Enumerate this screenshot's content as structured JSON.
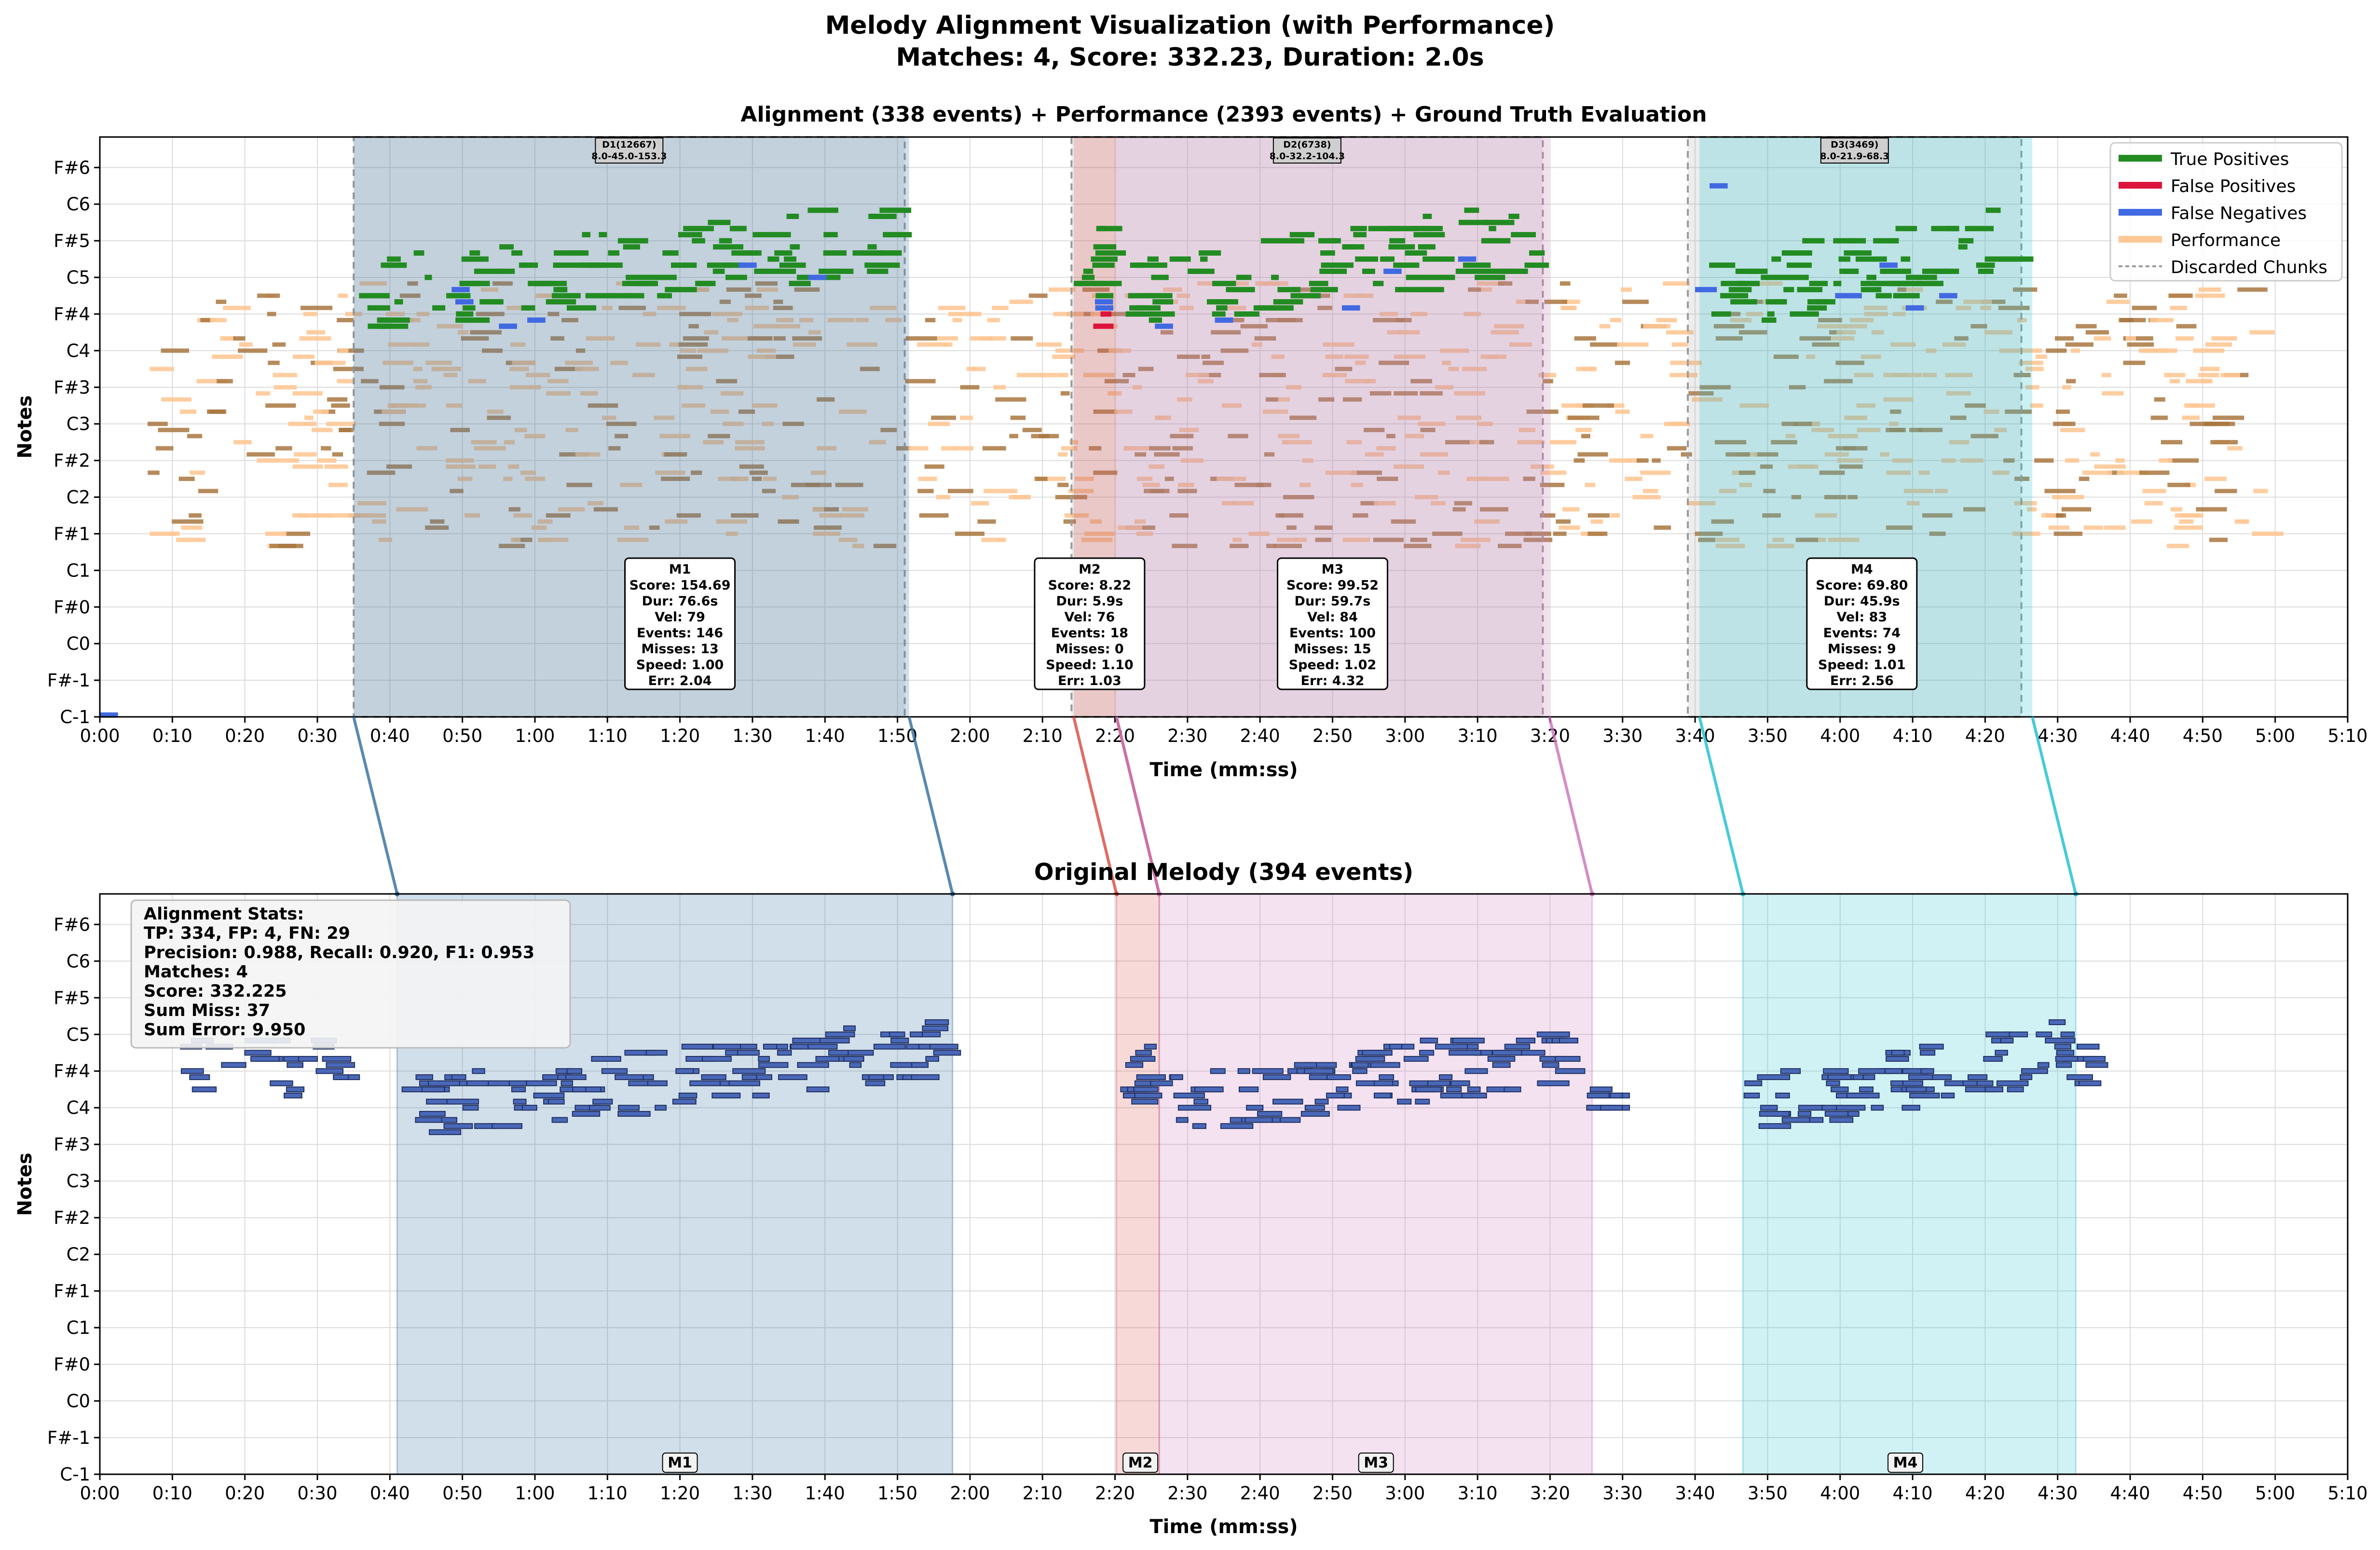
{
  "figure": {
    "title_line1": "Melody Alignment Visualization (with Performance)",
    "title_line2": "Matches: 4, Score: 332.23, Duration: 2.0s"
  },
  "colors": {
    "true_positive": "#228b22",
    "false_positive": "#dc143c",
    "false_negative": "#4169e1",
    "performance": "#ffc896",
    "performance_stroke": "#8b5a2b",
    "original": "#4a68b8",
    "original_stroke": "#1f2f60",
    "match_colors": [
      "#2f6c9e",
      "#d9463e",
      "#c970b8",
      "#17becf"
    ],
    "discard": "#9a9a9a",
    "grid": "#dcdcdc"
  },
  "chart_data": [
    {
      "type": "piano-roll",
      "title": "Alignment (338 events) + Performance (2393 events) + Ground Truth Evaluation",
      "xlabel": "Time (mm:ss)",
      "ylabel": "Notes",
      "xlim": [
        0,
        310
      ],
      "x_ticks": [
        0,
        10,
        20,
        30,
        40,
        50,
        60,
        70,
        80,
        90,
        100,
        110,
        120,
        130,
        140,
        150,
        160,
        170,
        180,
        190,
        200,
        210,
        220,
        230,
        240,
        250,
        260,
        270,
        280,
        290,
        300,
        310
      ],
      "x_tick_labels": [
        "0:00",
        "0:10",
        "0:20",
        "0:30",
        "0:40",
        "0:50",
        "1:00",
        "1:10",
        "1:20",
        "1:30",
        "1:40",
        "1:50",
        "2:00",
        "2:10",
        "2:20",
        "2:30",
        "2:40",
        "2:50",
        "3:00",
        "3:10",
        "3:20",
        "3:30",
        "3:40",
        "3:50",
        "4:00",
        "4:10",
        "4:20",
        "4:30",
        "4:40",
        "4:50",
        "5:00",
        "5:10"
      ],
      "y_ticks": [
        0,
        6,
        12,
        18,
        24,
        30,
        36,
        42,
        48,
        54,
        60,
        66,
        72,
        78,
        84,
        90
      ],
      "y_tick_labels": [
        "C-1",
        "F#-1",
        "C0",
        "F#0",
        "C1",
        "F#1",
        "C2",
        "F#2",
        "C3",
        "F#3",
        "C4",
        "F#4",
        "C5",
        "F#5",
        "C6",
        "F#6"
      ],
      "ylim": [
        0,
        95
      ],
      "grid": true,
      "legend_position": "top-right",
      "legend": [
        "True Positives",
        "False Positives",
        "False Negatives",
        "Performance",
        "Discarded Chunks"
      ],
      "discarded_chunks": [
        {
          "label": "D1(12667)",
          "range": "8.0-45.0-153.3",
          "start": 35,
          "end": 111
        },
        {
          "label": "D2(6738)",
          "range": "8.0-32.2-104.3",
          "start": 134,
          "end": 199
        },
        {
          "label": "D3(3469)",
          "range": "8.0-21.9-68.3",
          "start": 219,
          "end": 265
        }
      ],
      "matches": [
        {
          "id": "M1",
          "start": 35,
          "end": 111.6,
          "orig_start": 41,
          "orig_end": 117.6,
          "lines": [
            "M1",
            "Score: 154.69",
            "Dur: 76.6s",
            "Vel: 79",
            "Events: 146",
            "Misses: 13",
            "Speed: 1.00",
            "Err: 2.04"
          ]
        },
        {
          "id": "M2",
          "start": 134.3,
          "end": 140.2,
          "orig_start": 140.2,
          "orig_end": 146.1,
          "lines": [
            "M2",
            "Score: 8.22",
            "Dur: 5.9s",
            "Vel: 76",
            "Events: 18",
            "Misses: 0",
            "Speed: 1.10",
            "Err: 1.03"
          ]
        },
        {
          "id": "M3",
          "start": 140.2,
          "end": 199.9,
          "orig_start": 146.1,
          "orig_end": 205.8,
          "lines": [
            "M3",
            "Score: 99.52",
            "Dur: 59.7s",
            "Vel: 84",
            "Events: 100",
            "Misses: 15",
            "Speed: 1.02",
            "Err: 4.32"
          ]
        },
        {
          "id": "M4",
          "start": 220.6,
          "end": 266.5,
          "orig_start": 226.6,
          "orig_end": 272.5,
          "lines": [
            "M4",
            "Score: 69.80",
            "Dur: 45.9s",
            "Vel: 83",
            "Events: 74",
            "Misses: 9",
            "Speed: 1.01",
            "Err: 2.56"
          ]
        }
      ]
    },
    {
      "type": "piano-roll",
      "title": "Original Melody (394 events)",
      "xlabel": "Time (mm:ss)",
      "ylabel": "Notes",
      "xlim": [
        0,
        310
      ],
      "ylim": [
        0,
        95
      ],
      "grid": true,
      "stats_box_position": "top-left",
      "stats_lines": [
        "Alignment Stats:",
        "TP: 334, FP: 4, FN: 29",
        "Precision: 0.988, Recall: 0.920, F1: 0.953",
        "Matches: 4",
        "Score: 332.225",
        "Sum Miss: 37",
        "Sum Error: 9.950"
      ],
      "match_labels": [
        "M1",
        "M2",
        "M3",
        "M4"
      ]
    }
  ]
}
